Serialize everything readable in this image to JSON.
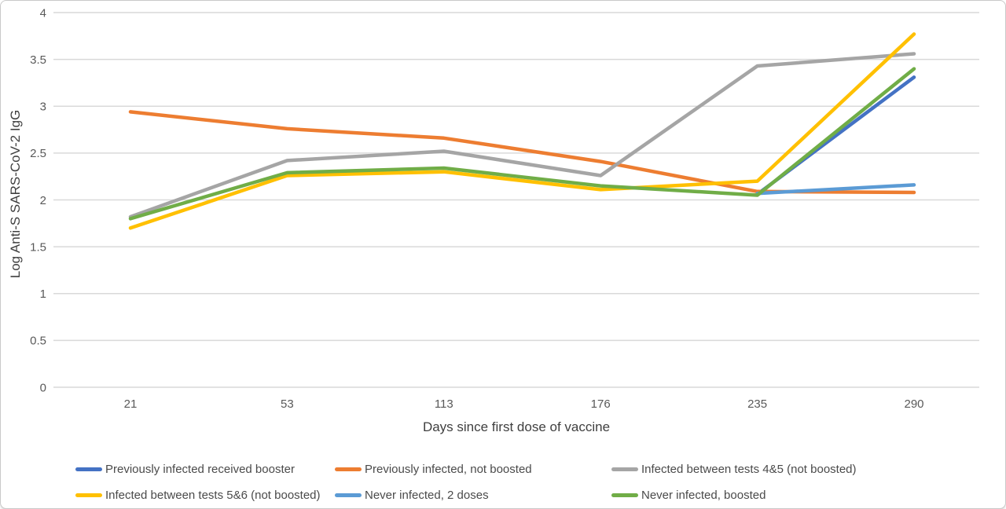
{
  "figure": {
    "background": "#ffffff",
    "border_color": "#c9c9c9"
  },
  "chart_data": {
    "type": "line",
    "title": "",
    "xlabel": "Days since first dose of vaccine",
    "ylabel": "Log Anti-S SARS-CoV-2 IgG",
    "categories": [
      "21",
      "53",
      "113",
      "176",
      "235",
      "290"
    ],
    "ylim": [
      0,
      4
    ],
    "yticks": [
      0,
      0.5,
      1,
      1.5,
      2,
      2.5,
      3,
      3.5,
      4
    ],
    "grid": "horizontal",
    "gridline_color": "#d9d9d9",
    "axis_text_color": "#595959",
    "axis_title_color": "#3f3f3f",
    "legend_position": "bottom",
    "line_width": 4.5,
    "series": [
      {
        "name": "Previously infected received booster",
        "color": "#4472C4",
        "values": [
          null,
          null,
          null,
          null,
          2.06,
          3.31
        ]
      },
      {
        "name": "Previously infected, not boosted",
        "color": "#ED7D31",
        "values": [
          2.94,
          2.76,
          2.66,
          2.41,
          2.09,
          2.08
        ]
      },
      {
        "name": "Infected between tests 4&5 (not boosted)",
        "color": "#A5A5A5",
        "values": [
          1.82,
          2.42,
          2.52,
          2.26,
          3.43,
          3.56
        ]
      },
      {
        "name": "Infected between tests 5&6 (not boosted)",
        "color": "#FFC000",
        "values": [
          1.7,
          2.26,
          2.3,
          2.11,
          2.2,
          3.77
        ]
      },
      {
        "name": "Never infected, 2 doses",
        "color": "#5B9BD5",
        "values": [
          null,
          null,
          null,
          null,
          2.07,
          2.16
        ]
      },
      {
        "name": "Never infected, boosted",
        "color": "#70AD47",
        "values": [
          1.8,
          2.29,
          2.34,
          2.15,
          2.05,
          3.4
        ]
      }
    ]
  }
}
